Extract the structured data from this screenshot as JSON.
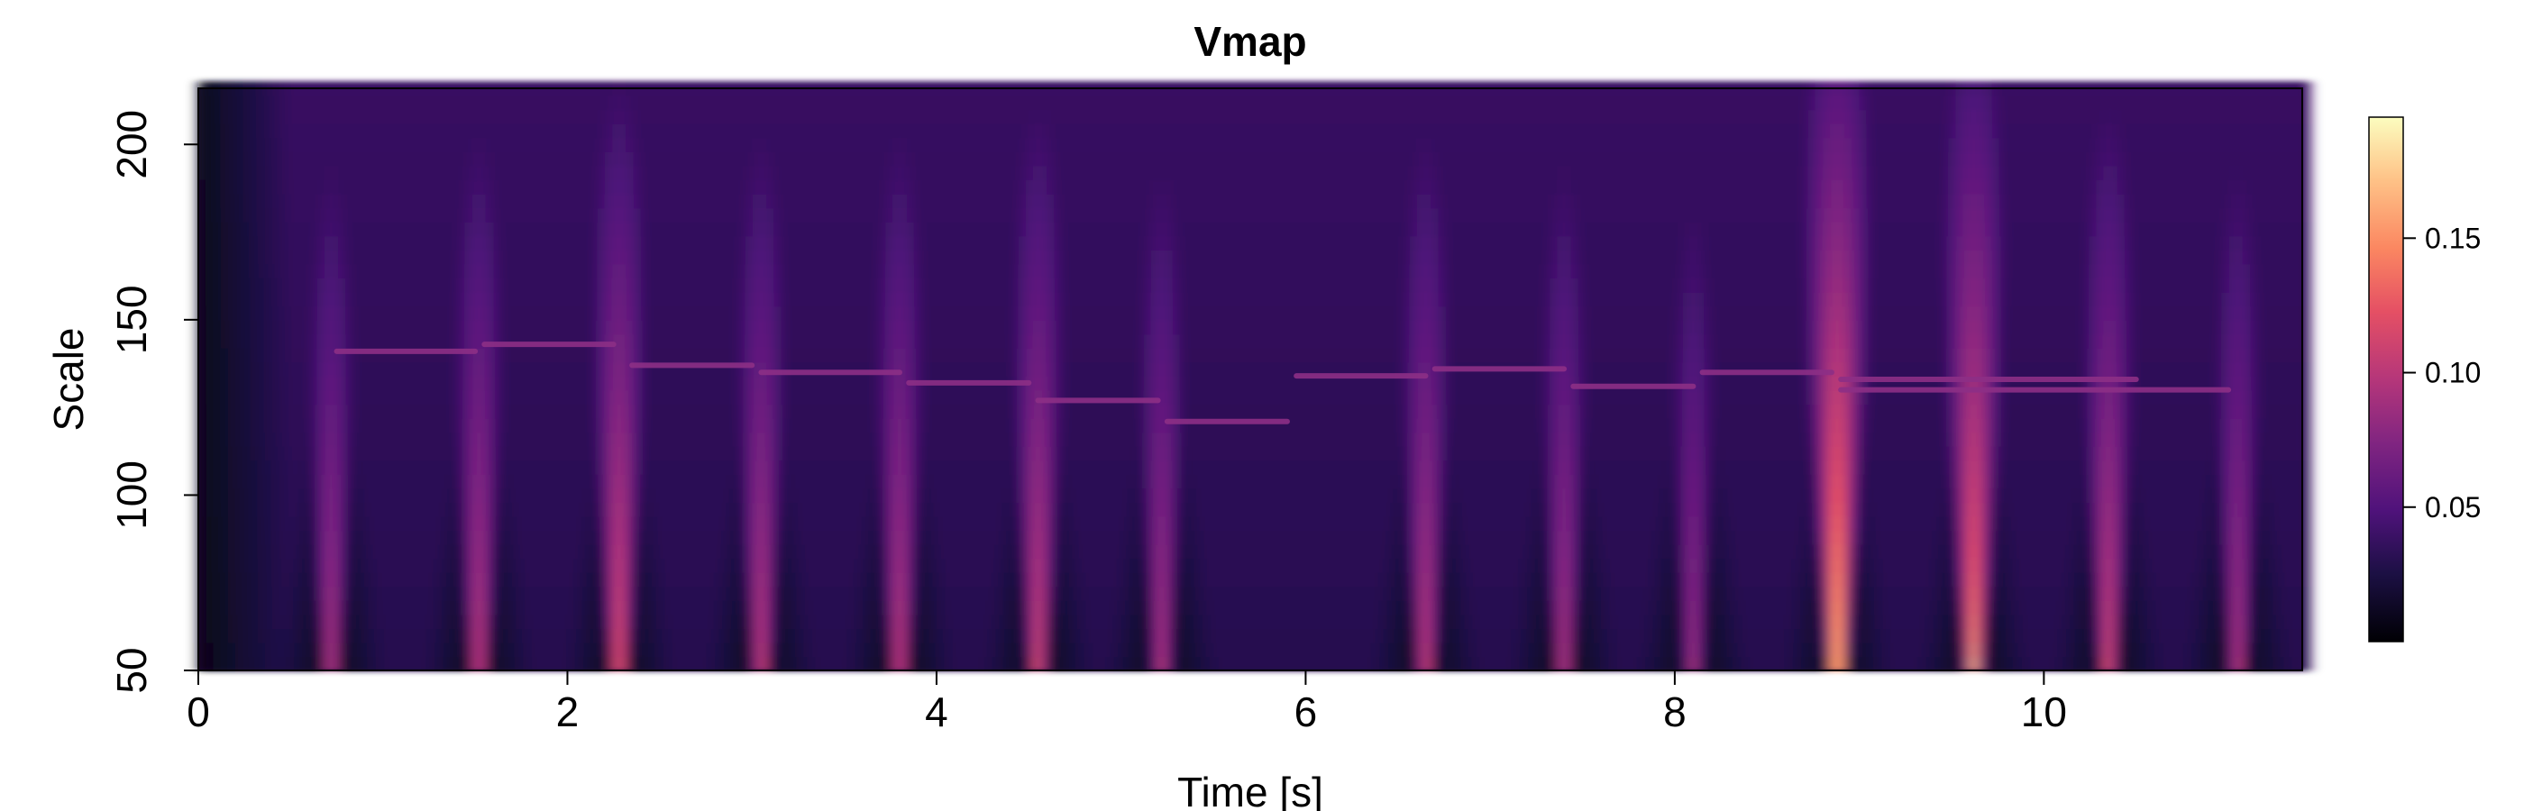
{
  "chart_data": {
    "type": "heatmap",
    "title": "Vmap",
    "xlabel": "Time [s]",
    "ylabel": "Scale",
    "xlim": [
      0,
      11.4
    ],
    "ylim": [
      50,
      216
    ],
    "x_ticks": [
      0,
      2,
      4,
      6,
      8,
      10
    ],
    "y_ticks": [
      50,
      100,
      150,
      200
    ],
    "colorbar": {
      "min": 0.0,
      "max": 0.195,
      "ticks": [
        0.05,
        0.1,
        0.15
      ],
      "tick_labels": [
        "0.05",
        "0.10",
        "0.15"
      ],
      "colormap": "magma",
      "placement": "right"
    },
    "ridge_segments": [
      {
        "t_start": 0.75,
        "t_end": 1.5,
        "scale": 141
      },
      {
        "t_start": 1.55,
        "t_end": 2.25,
        "scale": 143
      },
      {
        "t_start": 2.35,
        "t_end": 3.0,
        "scale": 137
      },
      {
        "t_start": 3.05,
        "t_end": 3.8,
        "scale": 135
      },
      {
        "t_start": 3.85,
        "t_end": 4.5,
        "scale": 132
      },
      {
        "t_start": 4.55,
        "t_end": 5.2,
        "scale": 127
      },
      {
        "t_start": 5.25,
        "t_end": 5.9,
        "scale": 121
      },
      {
        "t_start": 5.95,
        "t_end": 6.65,
        "scale": 134
      },
      {
        "t_start": 6.7,
        "t_end": 7.4,
        "scale": 136
      },
      {
        "t_start": 7.45,
        "t_end": 8.1,
        "scale": 131
      },
      {
        "t_start": 8.15,
        "t_end": 8.85,
        "scale": 135
      },
      {
        "t_start": 8.9,
        "t_end": 11.0,
        "scale": 130
      },
      {
        "t_start": 8.9,
        "t_end": 10.5,
        "scale": 133
      }
    ],
    "beat_peaks": [
      {
        "t": 0.72,
        "value": 0.11
      },
      {
        "t": 1.52,
        "value": 0.12
      },
      {
        "t": 2.28,
        "value": 0.14
      },
      {
        "t": 3.05,
        "value": 0.12
      },
      {
        "t": 3.8,
        "value": 0.12
      },
      {
        "t": 4.55,
        "value": 0.13
      },
      {
        "t": 5.22,
        "value": 0.11
      },
      {
        "t": 6.65,
        "value": 0.12
      },
      {
        "t": 7.4,
        "value": 0.11
      },
      {
        "t": 8.1,
        "value": 0.1
      },
      {
        "t": 8.88,
        "value": 0.195
      },
      {
        "t": 9.62,
        "value": 0.17
      },
      {
        "t": 10.35,
        "value": 0.13
      },
      {
        "t": 11.05,
        "value": 0.11
      }
    ]
  }
}
